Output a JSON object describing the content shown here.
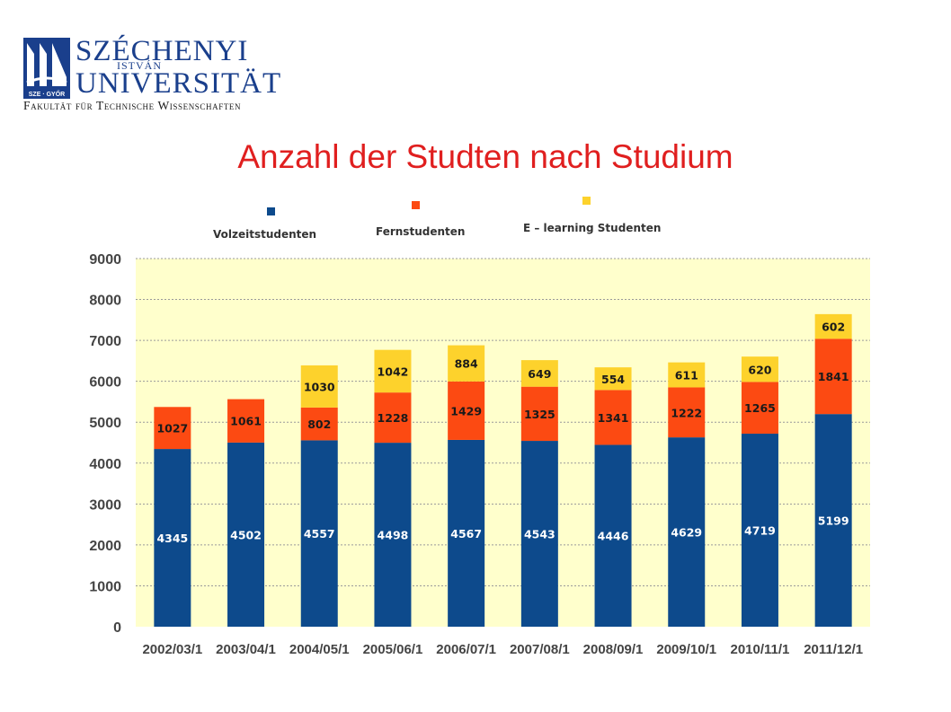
{
  "logo": {
    "line1": "SZÉCHENYI",
    "line2": "ISTVÁN",
    "line3": "UNIVERSITÄT",
    "line4": "Fakultät für Technische Wissenschaften",
    "badge": "SZE · GYŐR"
  },
  "title": "Anzahl der Studten nach Studium",
  "colors": {
    "volzeit": "#0d4a8c",
    "fern": "#fc4a12",
    "elearning": "#fdd22c",
    "plot_bg": "#ffffcc",
    "title": "#e01f1f"
  },
  "chart_data": {
    "type": "bar",
    "stacked": true,
    "categories": [
      "2002/03/1",
      "2003/04/1",
      "2004/05/1",
      "2005/06/1",
      "2006/07/1",
      "2007/08/1",
      "2008/09/1",
      "2009/10/1",
      "2010/11/1",
      "2011/12/1"
    ],
    "series": [
      {
        "name": "Volzeitstudenten",
        "values": [
          4345,
          4502,
          4557,
          4498,
          4567,
          4543,
          4446,
          4629,
          4719,
          5199
        ]
      },
      {
        "name": "Fernstudenten",
        "values": [
          1027,
          1061,
          802,
          1228,
          1429,
          1325,
          1341,
          1222,
          1265,
          1841
        ]
      },
      {
        "name": "E – learning Studenten",
        "values": [
          null,
          null,
          1030,
          1042,
          884,
          649,
          554,
          611,
          620,
          602
        ]
      }
    ],
    "ylim": [
      0,
      9000
    ],
    "yticks": [
      "0",
      "1000",
      "2000",
      "3000",
      "4000",
      "5000",
      "6000",
      "7000",
      "8000",
      "9000"
    ],
    "grid": true,
    "legend_position": "top"
  }
}
